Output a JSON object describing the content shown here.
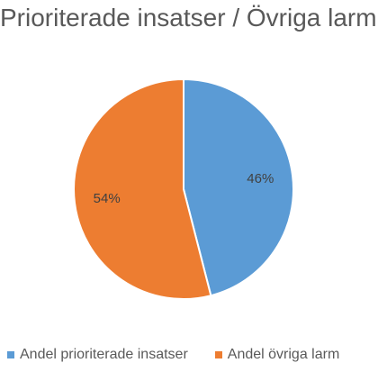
{
  "chart_data": {
    "type": "pie",
    "title": "Prioriterade insatser / Övriga larm",
    "series": [
      {
        "name": "Andel prioriterade insatser",
        "value": 46,
        "label": "46%",
        "color": "#5B9BD5"
      },
      {
        "name": "Andel övriga larm",
        "value": 54,
        "label": "54%",
        "color": "#ED7D31"
      }
    ],
    "legend_position": "bottom"
  }
}
